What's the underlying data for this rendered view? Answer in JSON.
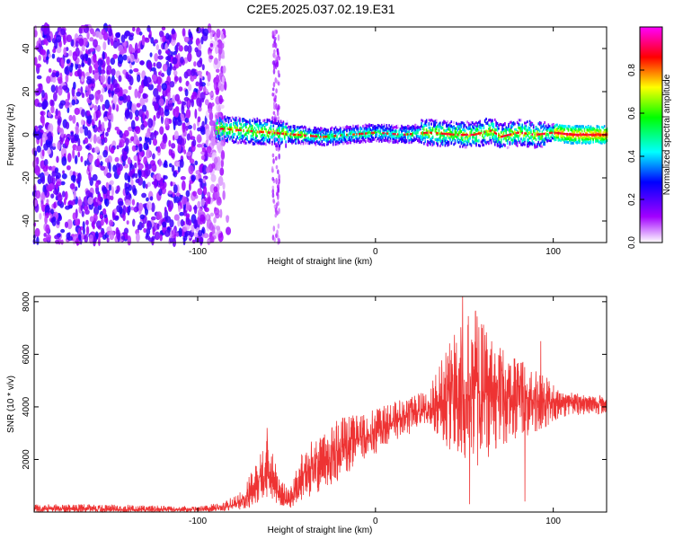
{
  "title": "C2E5.2025.037.02.19.E31",
  "chart_data": [
    {
      "type": "heatmap",
      "xlabel": "Height of straight line (km)",
      "ylabel": "Frequency (Hz)",
      "xlim": [
        -192,
        130
      ],
      "ylim": [
        -50,
        50
      ],
      "xticks": [
        -100,
        0,
        100
      ],
      "xtick_labels": [
        "-100",
        "0",
        "100"
      ],
      "yticks": [
        -40,
        -20,
        0,
        20,
        40
      ],
      "ytick_labels": [
        "-40",
        "-20",
        "0",
        "20",
        "40"
      ],
      "colorbar": {
        "label": "Normalized spectral amplitude",
        "range": [
          0,
          1
        ],
        "ticks": [
          0.0,
          0.2,
          0.4,
          0.6,
          0.8
        ],
        "tick_labels": [
          "0.0",
          "0.2",
          "0.4",
          "0.6",
          "0.8"
        ],
        "colormap": [
          "#ffffff",
          "#a200ff",
          "#0000ff",
          "#00ffff",
          "#00ff00",
          "#ffff00",
          "#ff0000",
          "#ff00ff"
        ]
      },
      "grid": false,
      "features": {
        "noise_region_x": [
          -192,
          -85
        ],
        "noise_stripe_x": [
          -58,
          -54
        ],
        "signal_band_start_x": -90,
        "signal_center_freq": [
          [
            -90,
            3
          ],
          [
            -75,
            2
          ],
          [
            -60,
            1
          ],
          [
            -45,
            0
          ],
          [
            -30,
            -1
          ],
          [
            -15,
            0
          ],
          [
            0,
            1
          ],
          [
            15,
            0
          ],
          [
            30,
            1
          ],
          [
            45,
            0
          ],
          [
            55,
            0
          ],
          [
            65,
            2
          ],
          [
            70,
            -1
          ],
          [
            80,
            1
          ],
          [
            90,
            0
          ],
          [
            100,
            1
          ],
          [
            110,
            0
          ],
          [
            130,
            0
          ]
        ]
      }
    },
    {
      "type": "line",
      "xlabel": "Height of straight line (km)",
      "ylabel": "SNR (10 * v/v)",
      "xlim": [
        -192,
        130
      ],
      "ylim": [
        0,
        8200
      ],
      "xticks": [
        -100,
        0,
        100
      ],
      "xtick_labels": [
        "-100",
        "0",
        "100"
      ],
      "yticks": [
        2000,
        4000,
        6000,
        8000
      ],
      "ytick_labels": [
        "2000",
        "4000",
        "6000",
        "8000"
      ],
      "grid": false,
      "series": [
        {
          "color": "#ee3333",
          "envelope": [
            {
              "x": -192,
              "low": 0,
              "mean": 100,
              "high": 300
            },
            {
              "x": -150,
              "low": 0,
              "mean": 100,
              "high": 300
            },
            {
              "x": -100,
              "low": 0,
              "mean": 100,
              "high": 200
            },
            {
              "x": -85,
              "low": 50,
              "mean": 150,
              "high": 400
            },
            {
              "x": -75,
              "low": 100,
              "mean": 400,
              "high": 800
            },
            {
              "x": -65,
              "low": 300,
              "mean": 1000,
              "high": 2200
            },
            {
              "x": -60,
              "low": 500,
              "mean": 1400,
              "high": 3000
            },
            {
              "x": -55,
              "low": 300,
              "mean": 700,
              "high": 1500
            },
            {
              "x": -48,
              "low": 150,
              "mean": 400,
              "high": 900
            },
            {
              "x": -40,
              "low": 500,
              "mean": 1500,
              "high": 2600
            },
            {
              "x": -30,
              "low": 800,
              "mean": 1900,
              "high": 3000
            },
            {
              "x": -20,
              "low": 1200,
              "mean": 2400,
              "high": 3600
            },
            {
              "x": -10,
              "low": 1800,
              "mean": 2800,
              "high": 3700
            },
            {
              "x": 0,
              "low": 2200,
              "mean": 3100,
              "high": 3900
            },
            {
              "x": 10,
              "low": 2600,
              "mean": 3400,
              "high": 4200
            },
            {
              "x": 20,
              "low": 3000,
              "mean": 3700,
              "high": 4400
            },
            {
              "x": 30,
              "low": 3300,
              "mean": 3900,
              "high": 4700
            },
            {
              "x": 40,
              "low": 2500,
              "mean": 4200,
              "high": 6200
            },
            {
              "x": 50,
              "low": 1800,
              "mean": 4500,
              "high": 7500
            },
            {
              "x": 55,
              "low": 1500,
              "mean": 4700,
              "high": 8000
            },
            {
              "x": 65,
              "low": 2200,
              "mean": 4500,
              "high": 6600
            },
            {
              "x": 75,
              "low": 2600,
              "mean": 4400,
              "high": 6000
            },
            {
              "x": 85,
              "low": 2800,
              "mean": 4300,
              "high": 5700
            },
            {
              "x": 95,
              "low": 3000,
              "mean": 4200,
              "high": 5200
            },
            {
              "x": 105,
              "low": 3600,
              "mean": 4200,
              "high": 4600
            },
            {
              "x": 115,
              "low": 3700,
              "mean": 4200,
              "high": 4500
            },
            {
              "x": 130,
              "low": 3700,
              "mean": 4100,
              "high": 4400
            }
          ],
          "spikes": [
            {
              "x": -61,
              "y": 3200
            },
            {
              "x": 49,
              "y": 8200
            },
            {
              "x": 53,
              "y": 300
            },
            {
              "x": 60,
              "y": 7000
            },
            {
              "x": 84,
              "y": 400
            },
            {
              "x": 93,
              "y": 6500
            }
          ]
        }
      ]
    }
  ]
}
